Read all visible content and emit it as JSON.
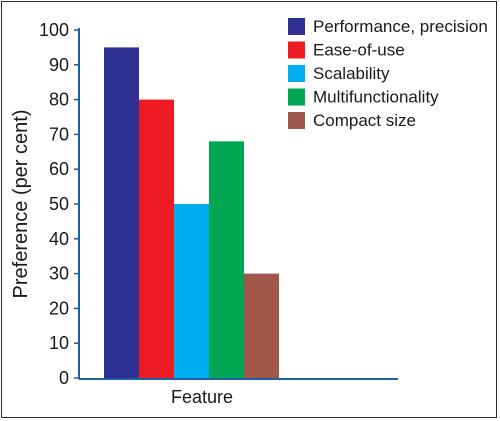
{
  "chart_data": {
    "type": "bar",
    "title": "",
    "xlabel": "Feature",
    "ylabel": "Preference (per cent)",
    "ylim": [
      0,
      100
    ],
    "yticks": [
      "0",
      "10",
      "20",
      "30",
      "40",
      "50",
      "60",
      "70",
      "80",
      "90",
      "100"
    ],
    "grid": false,
    "legend_position": "top-right",
    "series": [
      {
        "name": "Performance, precision",
        "value": 95,
        "color": "#2e3192"
      },
      {
        "name": "Ease-of-use",
        "value": 80,
        "color": "#ed1c24"
      },
      {
        "name": "Scalability",
        "value": 50,
        "color": "#00aeef"
      },
      {
        "name": "Multifunctionality",
        "value": 68,
        "color": "#00a651"
      },
      {
        "name": "Compact size",
        "value": 30,
        "color": "#a0574a"
      }
    ],
    "axis_color": "#1f5fa8"
  }
}
